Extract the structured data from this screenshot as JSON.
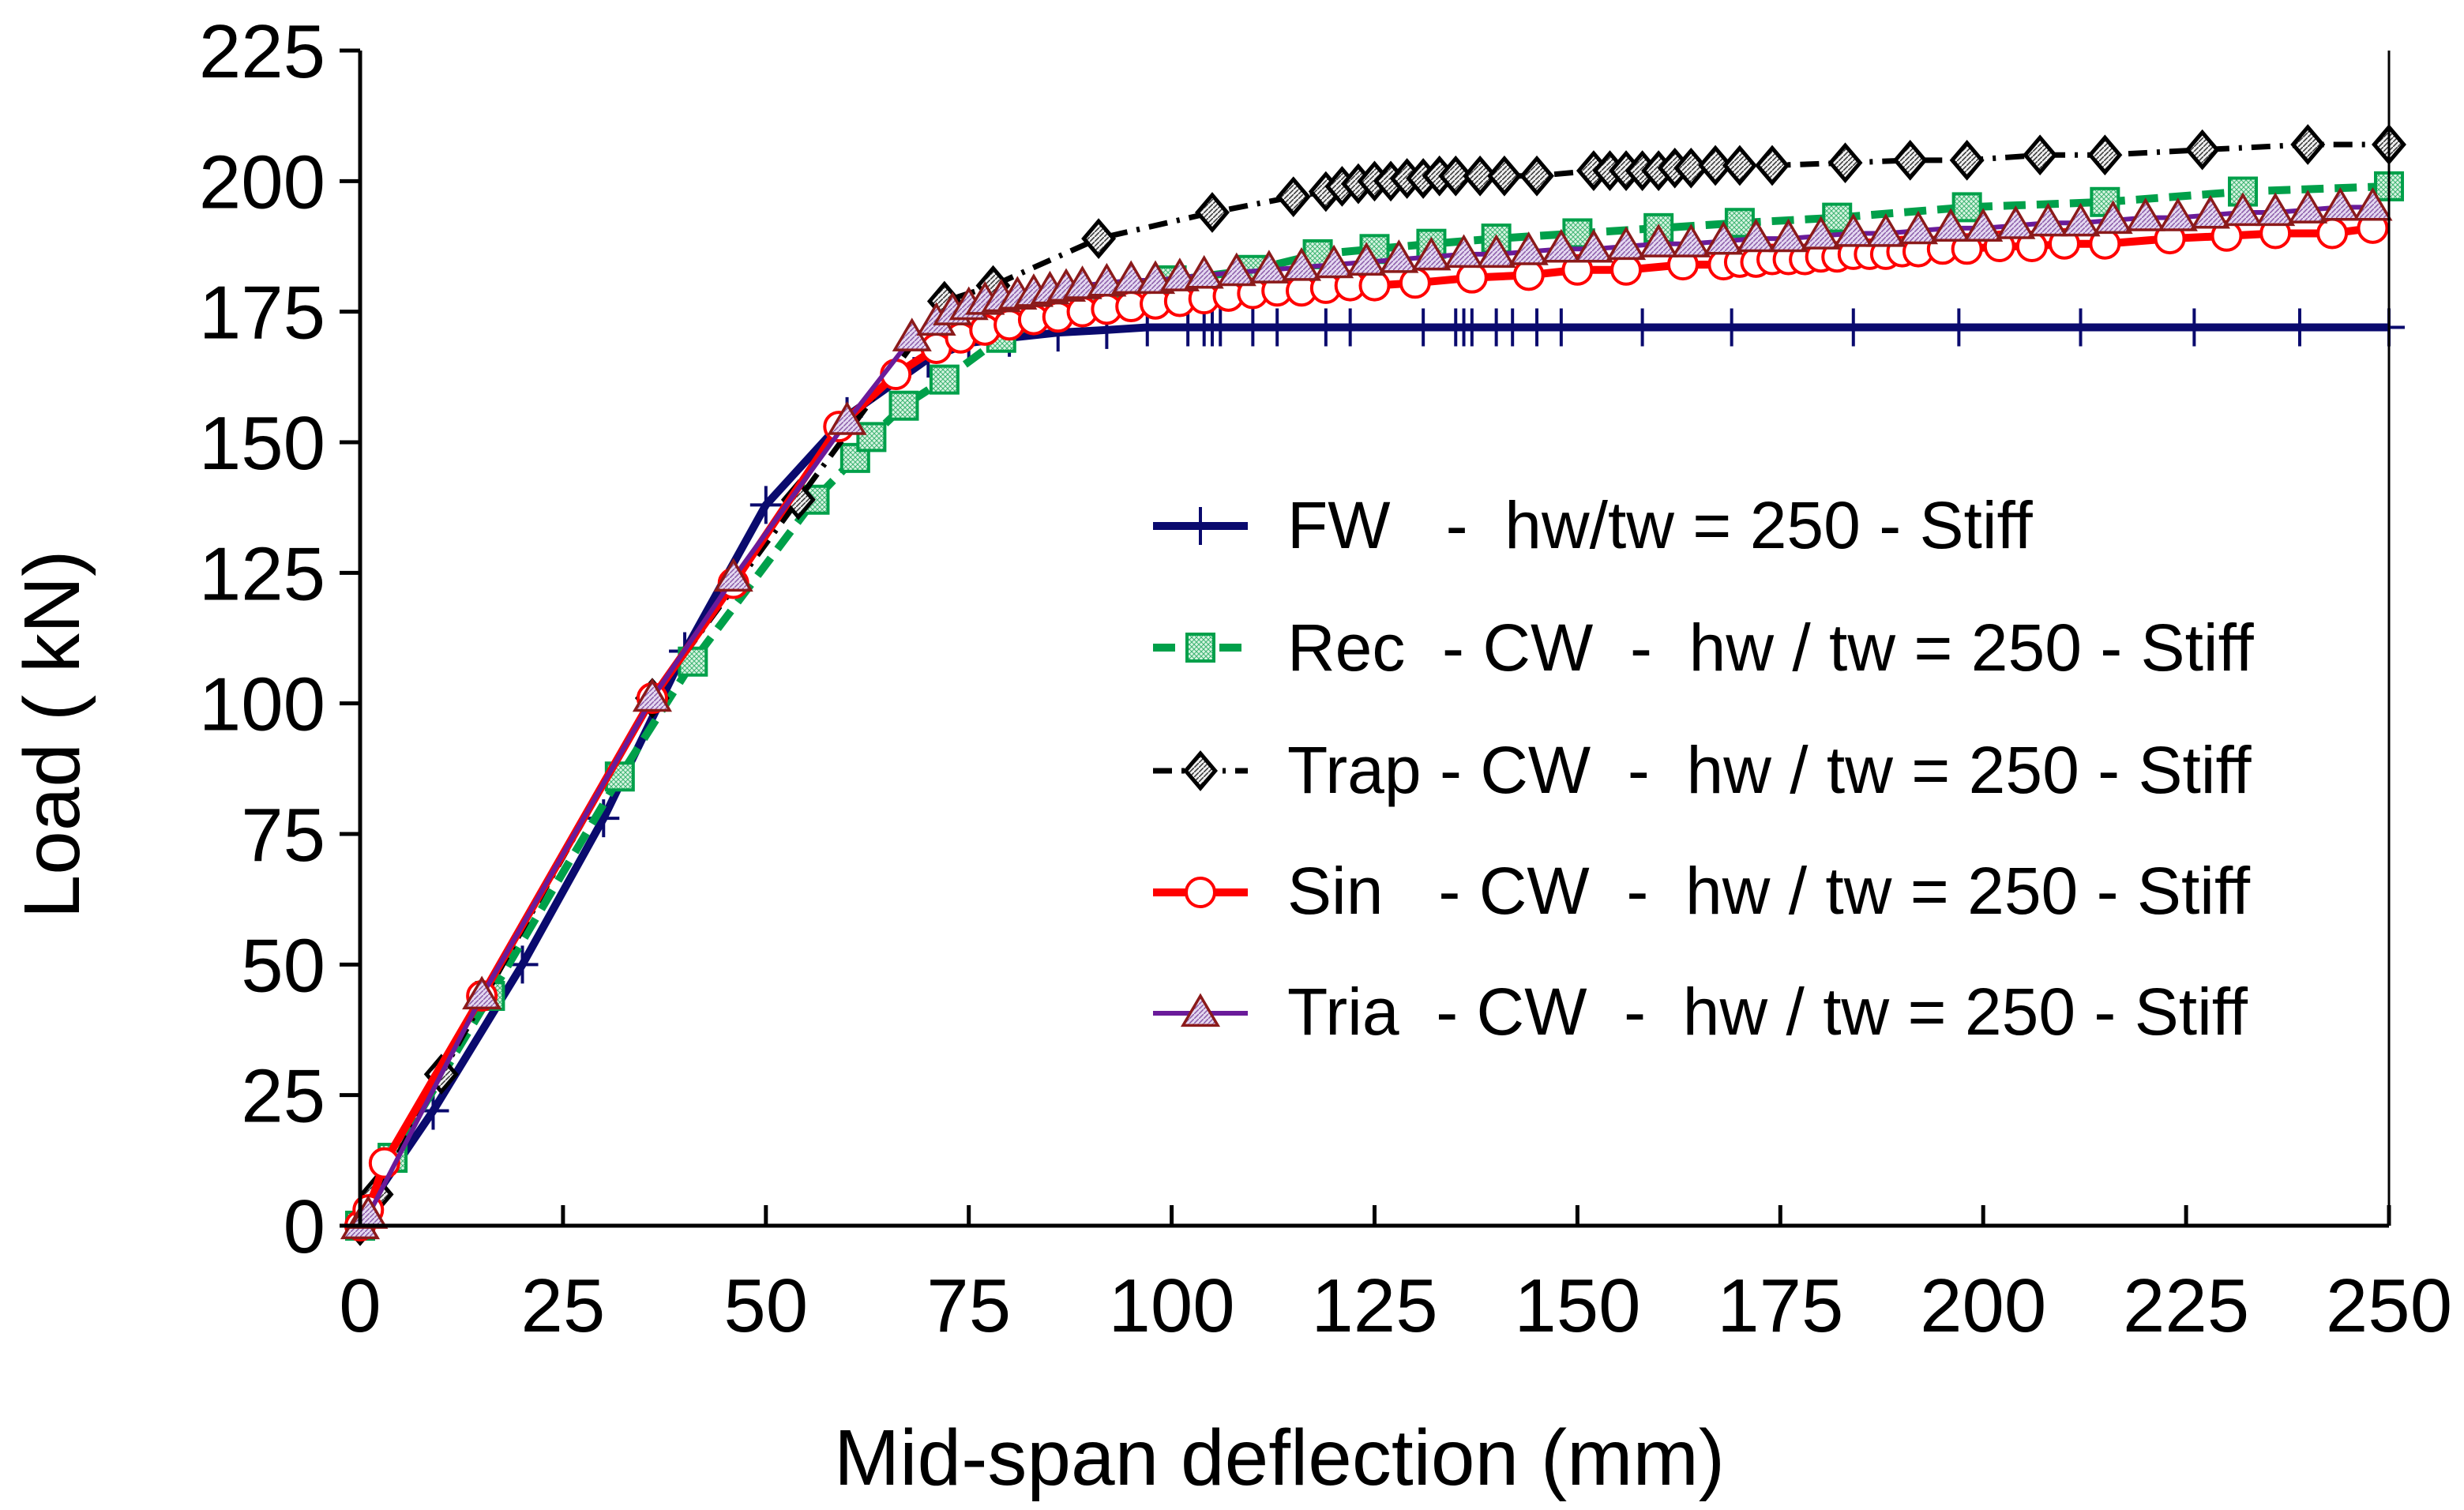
{
  "chart_data": {
    "type": "line",
    "title": "",
    "xlabel": "Mid-span deflection (mm)",
    "ylabel": "Load ( kN)",
    "xlim": [
      0,
      250
    ],
    "ylim": [
      0,
      225
    ],
    "xticks": [
      0,
      25,
      50,
      75,
      100,
      125,
      150,
      175,
      200,
      225,
      250
    ],
    "yticks": [
      0,
      25,
      50,
      75,
      100,
      125,
      150,
      175,
      200,
      225
    ],
    "xtick_labels": [
      "0",
      "25",
      "50",
      "75",
      "100",
      "125",
      "150",
      "175",
      "200",
      "225",
      "250"
    ],
    "ytick_labels": [
      "0",
      "25",
      "50",
      "75",
      "100",
      "125",
      "150",
      "175",
      "200",
      "225"
    ],
    "grid": false,
    "legend_position": "center-right",
    "series": [
      {
        "name": "FW   -  hw/tw = 250 - Stiff",
        "color": "#0a0a6e",
        "marker": "plus",
        "dash": "",
        "x": [
          0,
          2,
          9,
          20,
          30,
          40,
          50,
          60,
          70,
          75,
          80,
          86,
          92,
          97,
          102,
          104,
          105,
          106,
          110,
          113,
          119,
          122,
          131,
          135,
          136,
          137,
          140,
          142,
          145,
          148,
          158,
          169,
          184,
          197,
          212,
          226,
          239,
          250
        ],
        "y": [
          0,
          6,
          22,
          50,
          78,
          110,
          138,
          155,
          166,
          169,
          170,
          171,
          171.5,
          172,
          172,
          172,
          172,
          172,
          172,
          172,
          172,
          172,
          172,
          172,
          172,
          172,
          172,
          172,
          172,
          172,
          172,
          172,
          172,
          172,
          172,
          172,
          172,
          172
        ]
      },
      {
        "name": "Rec  - CW  -  hw / tw = 250 - Stiff",
        "color": "#00a04a",
        "marker": "square",
        "dash": "28,14",
        "x": [
          0,
          4,
          16,
          32,
          41,
          56,
          61,
          63,
          67,
          72,
          79,
          90,
          100,
          110,
          118,
          125,
          132,
          140,
          150,
          160,
          170,
          182,
          198,
          215,
          232,
          250
        ],
        "y": [
          0,
          13,
          44,
          86,
          108,
          139,
          147,
          151,
          157,
          162,
          170,
          177,
          181,
          183,
          186,
          187,
          188,
          189,
          190,
          191,
          192,
          193,
          195,
          196,
          198,
          199
        ]
      },
      {
        "name": "Trap - CW  -  hw / tw = 250 - Stiff",
        "color": "#000000",
        "marker": "diamond",
        "dash": "24,12,4,12",
        "x": [
          0,
          2,
          10,
          36,
          54,
          72,
          78,
          91,
          105,
          115,
          119,
          121,
          123,
          125,
          127,
          129,
          131,
          133,
          135,
          138,
          141,
          145,
          152,
          154,
          156,
          158,
          160,
          162,
          164,
          167,
          170,
          174,
          183,
          191,
          198,
          207,
          215,
          227,
          240,
          250
        ],
        "y": [
          0,
          6,
          29,
          101,
          139,
          177,
          180,
          189,
          194,
          197,
          198,
          199,
          199.5,
          200,
          200,
          200.5,
          200.5,
          201,
          201,
          201,
          201,
          201,
          202,
          202,
          202,
          202,
          202,
          202.5,
          202.5,
          203,
          203,
          203,
          203.5,
          204,
          204,
          205,
          205,
          206,
          207,
          207
        ]
      },
      {
        "name": "Sin   - CW  -  hw / tw = 250 - Stiff",
        "color": "#ff0000",
        "marker": "circle",
        "dash": "",
        "x": [
          0,
          1,
          3,
          15,
          36,
          46,
          59,
          66,
          71,
          74,
          77,
          80,
          83,
          86,
          89,
          92,
          95,
          98,
          101,
          104,
          107,
          110,
          113,
          116,
          119,
          122,
          125,
          130,
          137,
          144,
          150,
          156,
          163,
          168,
          170,
          172,
          174,
          176,
          178,
          180,
          182,
          184,
          186,
          188,
          190,
          192,
          195,
          198,
          202,
          206,
          210,
          215,
          223,
          230,
          236,
          243,
          248
        ],
        "y": [
          0,
          3,
          12,
          44,
          101,
          123,
          153,
          163,
          168,
          170,
          171.5,
          172.5,
          173.5,
          174,
          175,
          175.5,
          176,
          176.5,
          177,
          177.5,
          178,
          178.5,
          179,
          179,
          179.5,
          180,
          180,
          180.5,
          181.5,
          182,
          183,
          183,
          184,
          184,
          184.5,
          184.5,
          185,
          185,
          185,
          185.5,
          185.5,
          186,
          186,
          186,
          186.5,
          186.5,
          187,
          187,
          187.5,
          187.5,
          188,
          188,
          189,
          189.5,
          190,
          190,
          191
        ]
      },
      {
        "name": "Tria  - CW  -  hw / tw = 250 - Stiff",
        "color": "#6a1b9a",
        "marker": "triangle",
        "dash": "",
        "x": [
          0,
          1,
          15,
          36,
          46,
          60,
          68,
          71,
          73,
          75,
          77,
          79,
          81,
          83,
          85,
          87,
          89,
          92,
          95,
          98,
          101,
          104,
          108,
          112,
          116,
          120,
          124,
          128,
          132,
          136,
          140,
          144,
          148,
          152,
          156,
          160,
          164,
          168,
          172,
          176,
          180,
          184,
          188,
          192,
          196,
          200,
          204,
          208,
          212,
          216,
          220,
          224,
          228,
          232,
          236,
          240,
          244,
          248
        ],
        "y": [
          0,
          2,
          44,
          101,
          124,
          154,
          170,
          173,
          175,
          176,
          177,
          177.5,
          178,
          178.5,
          179,
          179.5,
          180,
          180.5,
          181,
          181,
          181.5,
          182,
          182.5,
          183,
          183.5,
          184,
          184.5,
          185,
          185.5,
          186,
          186,
          186.5,
          187,
          187,
          187.5,
          188,
          188,
          188.5,
          189,
          189,
          189.5,
          190,
          190,
          190.5,
          191,
          191,
          191.5,
          192,
          192,
          192.5,
          193,
          193,
          193.5,
          194,
          194,
          194.5,
          195,
          195
        ]
      }
    ]
  }
}
